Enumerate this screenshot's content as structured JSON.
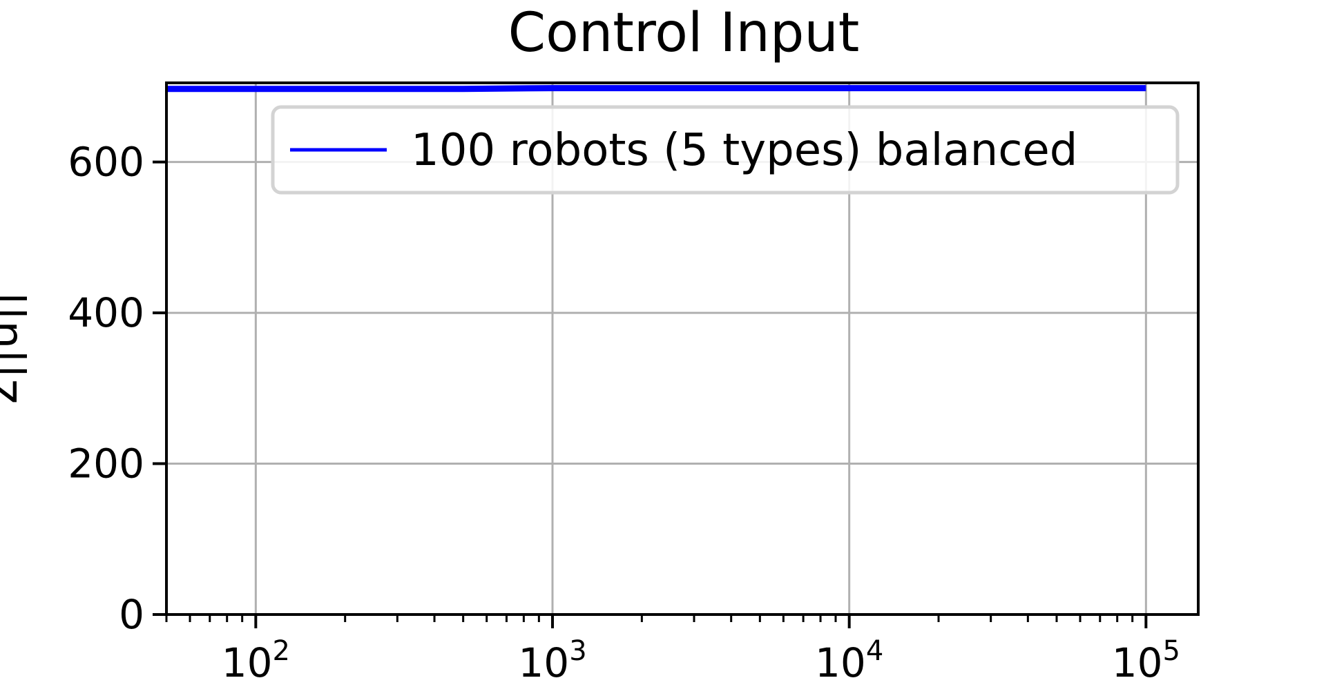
{
  "chart_data": {
    "type": "line",
    "title": "Control Input",
    "xlabel": "",
    "ylabel": "Σ||u||",
    "x_scale": "log",
    "xlim": [
      50,
      150000
    ],
    "ylim": [
      0,
      705
    ],
    "x_ticks": [
      100,
      1000,
      10000,
      100000
    ],
    "x_tick_labels": [
      {
        "base": "10",
        "exp": "2"
      },
      {
        "base": "10",
        "exp": "3"
      },
      {
        "base": "10",
        "exp": "4"
      },
      {
        "base": "10",
        "exp": "5"
      }
    ],
    "y_ticks": [
      0,
      200,
      400,
      600
    ],
    "y_tick_labels": [
      "0",
      "200",
      "400",
      "600"
    ],
    "grid": true,
    "legend_position": "top-right",
    "series": [
      {
        "name": "100 robots (5 types) balanced",
        "color": "#0000ff",
        "x": [
          50,
          100,
          200,
          500,
          1000,
          2000,
          5000,
          10000,
          20000,
          50000,
          100000
        ],
        "y": [
          697,
          697,
          697,
          697,
          698,
          698,
          698,
          698,
          698,
          698,
          698
        ]
      }
    ]
  }
}
